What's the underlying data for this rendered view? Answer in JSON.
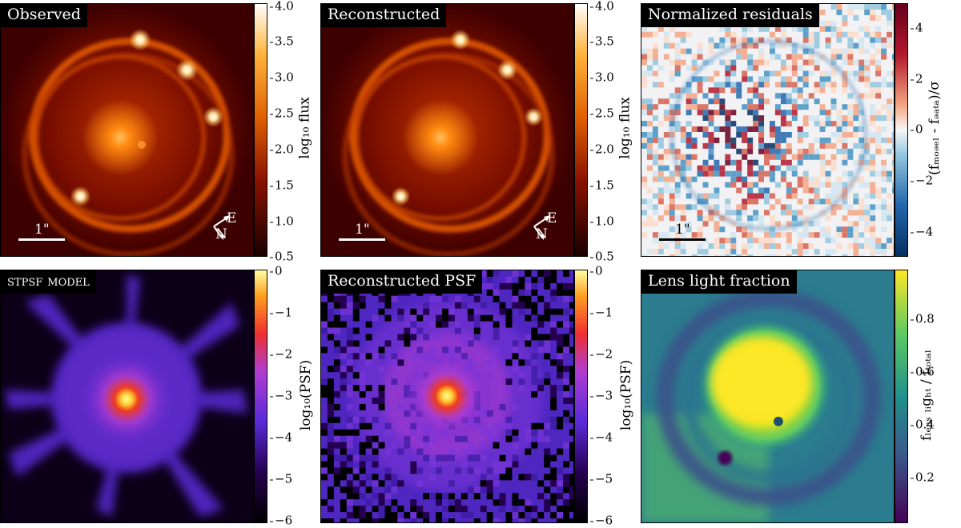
{
  "panels": {
    "observed": {
      "title": "Observed",
      "scalebar": "1\"",
      "compass_e": "E",
      "compass_n": "N",
      "colorbar": {
        "label": "log₁₀ flux",
        "ticks": [
          "4.0",
          "3.5",
          "3.0",
          "2.5",
          "2.0",
          "1.5",
          "1.0",
          "0.5"
        ]
      }
    },
    "reconstructed": {
      "title": "Reconstructed",
      "scalebar": "1\"",
      "compass_e": "E",
      "compass_n": "N",
      "colorbar": {
        "label": "log₁₀ flux",
        "ticks": [
          "4.0",
          "3.5",
          "3.0",
          "2.5",
          "2.0",
          "1.5",
          "1.0",
          "0.5"
        ]
      }
    },
    "residuals": {
      "title": "Normalized residuals",
      "scalebar": "1\"",
      "colorbar": {
        "label": "(fₘₒₔₑₗ - fₔₐₜₐ)/σ",
        "ticks": [
          "4",
          "2",
          "0",
          "−2",
          "−4"
        ]
      }
    },
    "stpsf": {
      "title": "stpsf model",
      "colorbar": {
        "label": "log₁₀(PSF)",
        "ticks": [
          "0",
          "−1",
          "−2",
          "−3",
          "−4",
          "−5",
          "−6"
        ]
      }
    },
    "recon_psf": {
      "title": "Reconstructed PSF",
      "colorbar": {
        "label": "log₁₀(PSF)",
        "ticks": [
          "0",
          "−1",
          "−2",
          "−3",
          "−4",
          "−5",
          "−6"
        ]
      }
    },
    "lens_light": {
      "title": "Lens light fraction",
      "colorbar": {
        "label": "fₗₑₙₛ ₗᵢgₕₜ / fₜₒₜₐₗ",
        "ticks": [
          "0.8",
          "0.6",
          "0.4",
          "0.2"
        ]
      }
    }
  },
  "colors": {
    "afmhot_dark": "#1a0000",
    "afmhot_mid": "#c23c00",
    "afmhot_bright": "#ffd070",
    "plasma_dark": "#0d0887",
    "plasma_mid": "#cc4778",
    "plasma_bright": "#f0f921",
    "viridis_dark": "#440154",
    "viridis_mid": "#21918c",
    "viridis_bright": "#fde725",
    "rdbu_red": "#67001f",
    "rdbu_blue": "#053061"
  }
}
